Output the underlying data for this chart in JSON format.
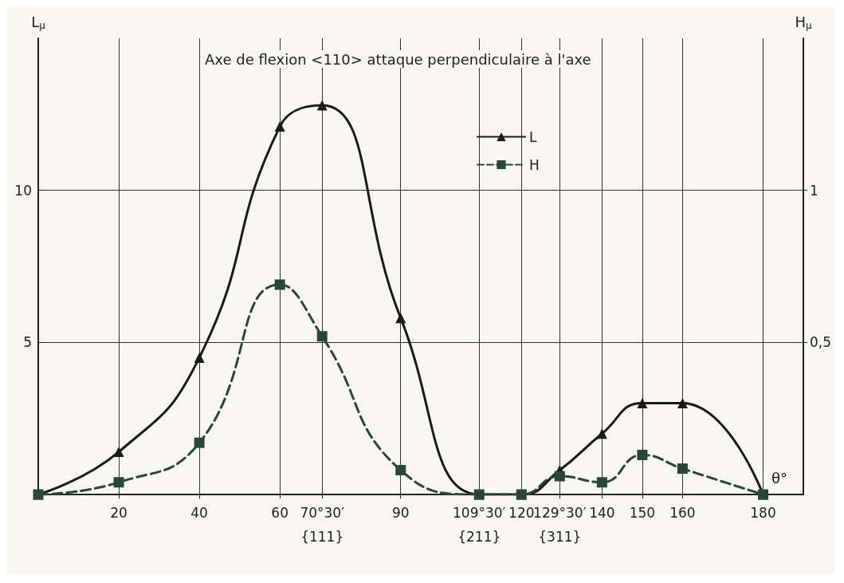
{
  "chart_data": {
    "type": "line",
    "title": "Axe de flexion <110> attaque perpendiculaire à l'axe",
    "xlabel": "θ°",
    "ylabel": "L$_{μ}$",
    "y2label": "H$_{μ}$",
    "x": [
      0,
      20,
      40,
      60,
      70.5,
      90,
      109.5,
      120,
      129.5,
      140,
      150,
      160,
      180
    ],
    "series": [
      {
        "name": "L",
        "color": "#1a1a1a",
        "marker": "triangle",
        "line_style": "solid",
        "values": [
          0,
          1.4,
          4.5,
          12.1,
          12.8,
          5.8,
          0,
          0,
          0.8,
          2.0,
          3.0,
          3.0,
          0
        ]
      },
      {
        "name": "H",
        "color": "#2a4636",
        "marker": "square",
        "line_style": "dashed",
        "axis": "y2",
        "values": [
          0,
          0.04,
          0.17,
          0.69,
          0.52,
          0.08,
          0,
          0,
          0.06,
          0.04,
          0.13,
          0.085,
          0
        ]
      }
    ],
    "xlim": [
      0,
      190
    ],
    "xticks": [
      20,
      40,
      60,
      {
        "value": 70.5,
        "label": "70°30′\n{111}"
      },
      90,
      {
        "value": 109.5,
        "label": "109°30′\n{211}"
      },
      120,
      {
        "value": 129.5,
        "label": "129°30′\n{311}"
      },
      140,
      150,
      160,
      180
    ],
    "ylim": [
      0,
      15
    ],
    "yticks": [
      5,
      10
    ],
    "y2lim": [
      0,
      1.5
    ],
    "y2ticks": [
      {
        "value": 0.5,
        "label": "0,5"
      },
      1
    ],
    "grid": true,
    "legend": "top right"
  }
}
